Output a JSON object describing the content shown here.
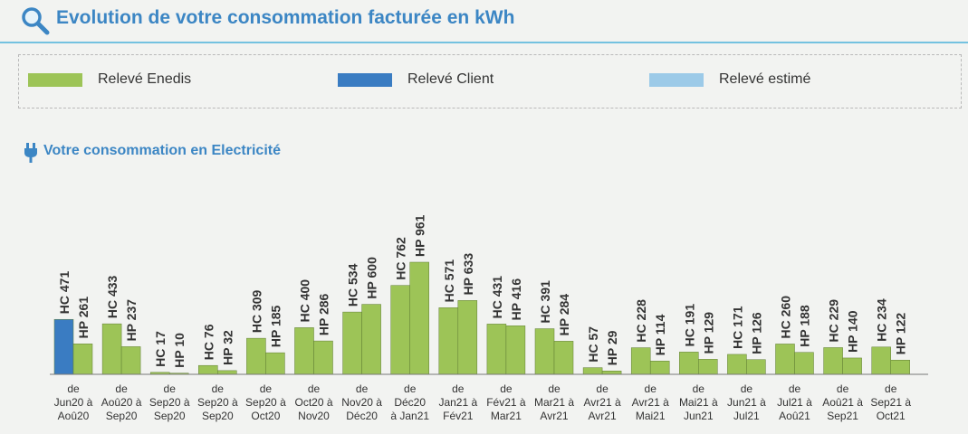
{
  "header": {
    "title": "Evolution de votre consommation facturée en kWh"
  },
  "legend": [
    {
      "label": "Relevé Enedis",
      "color": "#9dc457"
    },
    {
      "label": "Relevé Client",
      "color": "#3a7cc2"
    },
    {
      "label": "Relevé estimé",
      "color": "#9ccae8"
    }
  ],
  "section": {
    "subtitle": "Votre consommation en Electricité"
  },
  "chart_data": {
    "type": "bar",
    "series": [
      {
        "name": "HC",
        "values": [
          471,
          433,
          17,
          76,
          309,
          400,
          534,
          762,
          571,
          431,
          391,
          57,
          228,
          191,
          171,
          260,
          229,
          234
        ]
      },
      {
        "name": "HP",
        "values": [
          261,
          237,
          10,
          32,
          185,
          286,
          600,
          961,
          633,
          416,
          284,
          29,
          114,
          129,
          126,
          188,
          140,
          122
        ]
      }
    ],
    "categories": [
      [
        "de",
        "Jun20 à",
        "Aoû20"
      ],
      [
        "de",
        "Aoû20 à",
        "Sep20"
      ],
      [
        "de",
        "Sep20 à",
        "Sep20"
      ],
      [
        "de",
        "Sep20 à",
        "Sep20"
      ],
      [
        "de",
        "Sep20 à",
        "Oct20"
      ],
      [
        "de",
        "Oct20 à",
        "Nov20"
      ],
      [
        "de",
        "Nov20 à",
        "Déc20"
      ],
      [
        "de",
        "Déc20",
        "à Jan21"
      ],
      [
        "de",
        "Jan21 à",
        "Fév21"
      ],
      [
        "de",
        "Fév21 à",
        "Mar21"
      ],
      [
        "de",
        "Mar21 à",
        "Avr21"
      ],
      [
        "de",
        "Avr21 à",
        "Avr21"
      ],
      [
        "de",
        "Avr21 à",
        "Mai21"
      ],
      [
        "de",
        "Mai21 à",
        "Jun21"
      ],
      [
        "de",
        "Jun21 à",
        "Jul21"
      ],
      [
        "de",
        "Jul21 à",
        "Aoû21"
      ],
      [
        "de",
        "Aoû21 à",
        "Sep21"
      ],
      [
        "de",
        "Sep21 à",
        "Oct21"
      ]
    ],
    "bar_colors": [
      "#3a7cc2",
      "#9dc457",
      "#9dc457",
      "#9dc457",
      "#9dc457",
      "#9dc457",
      "#9dc457",
      "#9dc457",
      "#9dc457",
      "#9dc457",
      "#9dc457",
      "#9dc457",
      "#9dc457",
      "#9dc457",
      "#9dc457",
      "#9dc457",
      "#9dc457",
      "#9dc457"
    ],
    "ylim": [
      0,
      961
    ],
    "grid": false,
    "legend_position": "top"
  }
}
